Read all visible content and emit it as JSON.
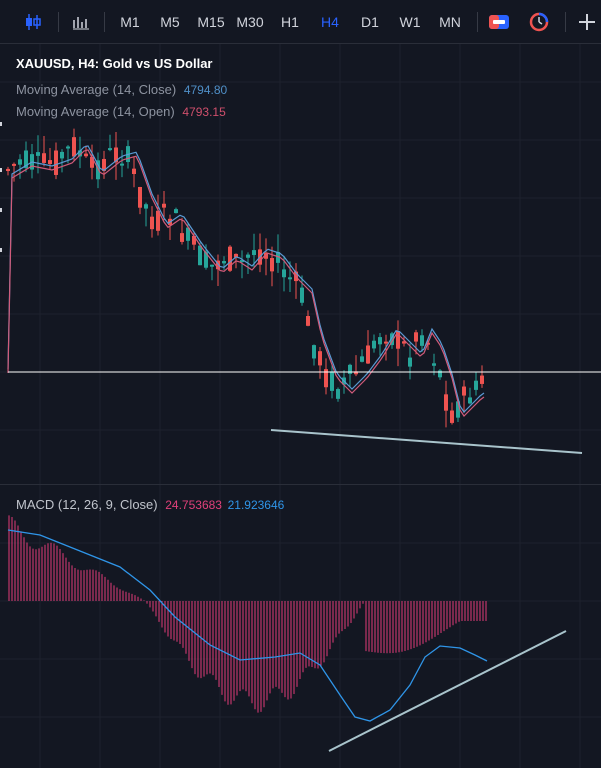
{
  "toolbar": {
    "timeframes": [
      "M1",
      "M5",
      "M15",
      "M30",
      "H1",
      "H4",
      "D1",
      "W1",
      "MN"
    ],
    "active_timeframe": "H4"
  },
  "main_legend": {
    "title": "XAUUSD, H4: Gold vs US Dollar",
    "ma_close_label": "Moving Average (14, Close)",
    "ma_close_value": "4794.80",
    "ma_open_label": "Moving Average (14, Open)",
    "ma_open_value": "4793.15"
  },
  "macd_legend": {
    "label": "MACD (12, 26, 9, Close)",
    "macd_value": "24.753683",
    "signal_value": "21.923646"
  },
  "colors": {
    "background": "#131722",
    "bull": "#26a69a",
    "bear": "#ef5350",
    "ma_close": "#5b9bd5",
    "ma_open": "#d15b7a",
    "macd_hist": "#e03b78",
    "signal_line": "#2f95e8",
    "trendline": "#a9c4cc",
    "price_line": "#ffffff"
  }
}
